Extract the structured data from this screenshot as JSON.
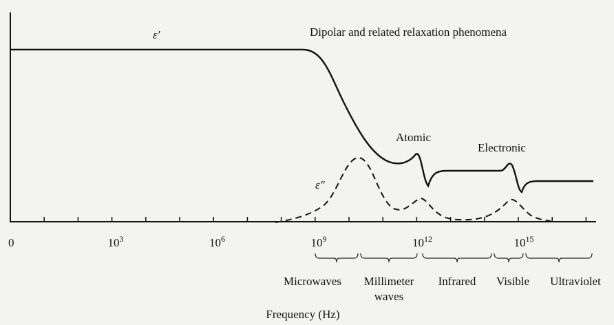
{
  "labels": {
    "eps_real": "ε′",
    "eps_imag": "ε″",
    "dipolar": "Dipolar and related relaxation phenomena",
    "atomic": "Atomic",
    "electronic": "Electronic",
    "x_axis": "Frequency (Hz)"
  },
  "ticks": [
    {
      "base": "0"
    },
    {
      "base": "10",
      "exp": "3"
    },
    {
      "base": "10",
      "exp": "6"
    },
    {
      "base": "10",
      "exp": "9"
    },
    {
      "base": "10",
      "exp": "12"
    },
    {
      "base": "10",
      "exp": "15"
    }
  ],
  "bands": [
    {
      "lines": [
        "Microwaves"
      ]
    },
    {
      "lines": [
        "Millimeter",
        "waves"
      ]
    },
    {
      "lines": [
        "Infrared"
      ]
    },
    {
      "lines": [
        "Visible"
      ]
    },
    {
      "lines": [
        "Ultraviolet"
      ]
    }
  ]
}
